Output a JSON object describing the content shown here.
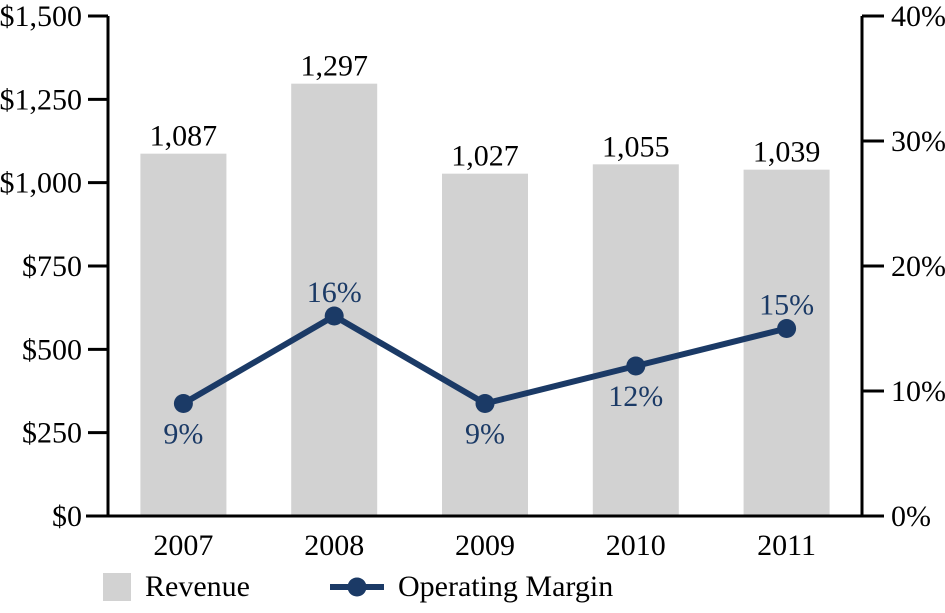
{
  "chart_data": {
    "type": "bar+line",
    "title": "",
    "categories": [
      "2007",
      "2008",
      "2009",
      "2010",
      "2011"
    ],
    "series": [
      {
        "name": "Revenue",
        "type": "bar",
        "axis": "left",
        "values": [
          1087,
          1297,
          1027,
          1055,
          1039
        ],
        "value_labels": [
          "1,087",
          "1,297",
          "1,027",
          "1,055",
          "1,039"
        ],
        "color": "#d2d2d2"
      },
      {
        "name": "Operating Margin",
        "type": "line",
        "axis": "right",
        "values": [
          9,
          16,
          9,
          12,
          15
        ],
        "value_labels": [
          "9%",
          "16%",
          "9%",
          "12%",
          "15%"
        ],
        "label_positions": [
          "below",
          "above",
          "below",
          "below",
          "above"
        ],
        "color": "#1b3a66"
      }
    ],
    "left_axis": {
      "min": 0,
      "max": 1500,
      "tick_values": [
        0,
        250,
        500,
        750,
        1000,
        1250,
        1500
      ],
      "tick_labels": [
        "$0",
        "$250",
        "$500",
        "$750",
        "$1,000",
        "$1,250",
        "$1,500"
      ]
    },
    "right_axis": {
      "min": 0,
      "max": 40,
      "tick_values": [
        0,
        10,
        20,
        30,
        40
      ],
      "tick_labels": [
        "0%",
        "10%",
        "20%",
        "30%",
        "40%"
      ]
    },
    "legend": [
      {
        "label": "Revenue",
        "swatch": "bar"
      },
      {
        "label": "Operating Margin",
        "swatch": "line"
      }
    ],
    "grid": false,
    "legend_position": "bottom-left"
  },
  "colors": {
    "bar_fill": "#d2d2d2",
    "line": "#1b3a66",
    "axis": "#000000",
    "text": "#000000",
    "background": "#ffffff"
  }
}
